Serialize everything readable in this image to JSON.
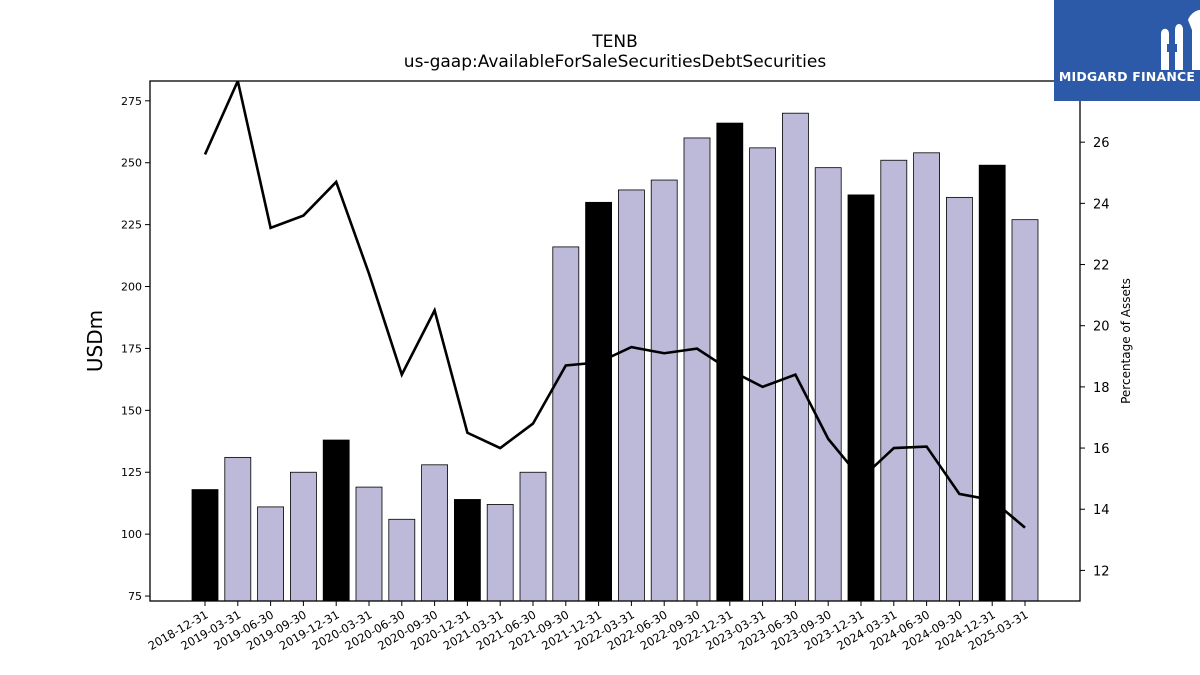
{
  "chart_data": {
    "type": "bar",
    "title": "TENB",
    "subtitle": "us-gaap:AvailableForSaleSecuritiesDebtSecurities",
    "ylabel": "USDm",
    "y2label": "Percentage of Assets",
    "ylim": [
      73,
      283
    ],
    "y2lim": [
      11,
      28
    ],
    "yticks": [
      75,
      100,
      125,
      150,
      175,
      200,
      225,
      250,
      275
    ],
    "y2ticks": [
      12,
      14,
      16,
      18,
      20,
      22,
      24,
      26
    ],
    "grid": false,
    "categories": [
      "2018-12-31",
      "2019-03-31",
      "2019-06-30",
      "2019-09-30",
      "2019-12-31",
      "2020-03-31",
      "2020-06-30",
      "2020-09-30",
      "2020-12-31",
      "2021-03-31",
      "2021-06-30",
      "2021-09-30",
      "2021-12-31",
      "2022-03-31",
      "2022-06-30",
      "2022-09-30",
      "2022-12-31",
      "2023-03-31",
      "2023-06-30",
      "2023-09-30",
      "2023-12-31",
      "2024-03-31",
      "2024-06-30",
      "2024-09-30",
      "2024-12-31",
      "2025-03-31"
    ],
    "series": [
      {
        "type": "bar",
        "values": [
          118,
          131,
          111,
          125,
          138,
          119,
          106,
          128,
          114,
          112,
          125,
          216,
          234,
          239,
          243,
          260,
          266,
          256,
          270,
          248,
          237,
          251,
          254,
          236,
          249,
          227
        ],
        "year_end_color": "#000000",
        "color": "#bcb9d9"
      },
      {
        "type": "line",
        "axis": "right",
        "color": "#000000",
        "values": [
          25.6,
          28.0,
          23.2,
          23.6,
          24.7,
          21.7,
          18.4,
          20.5,
          16.5,
          16.0,
          16.8,
          18.7,
          18.8,
          19.3,
          19.1,
          19.25,
          18.55,
          18.0,
          18.4,
          16.3,
          15.0,
          16.0,
          16.05,
          14.5,
          14.3,
          13.4
        ]
      }
    ]
  },
  "logo": {
    "text": "MIDGARD FINANCE",
    "color": "#2c5aa8"
  }
}
